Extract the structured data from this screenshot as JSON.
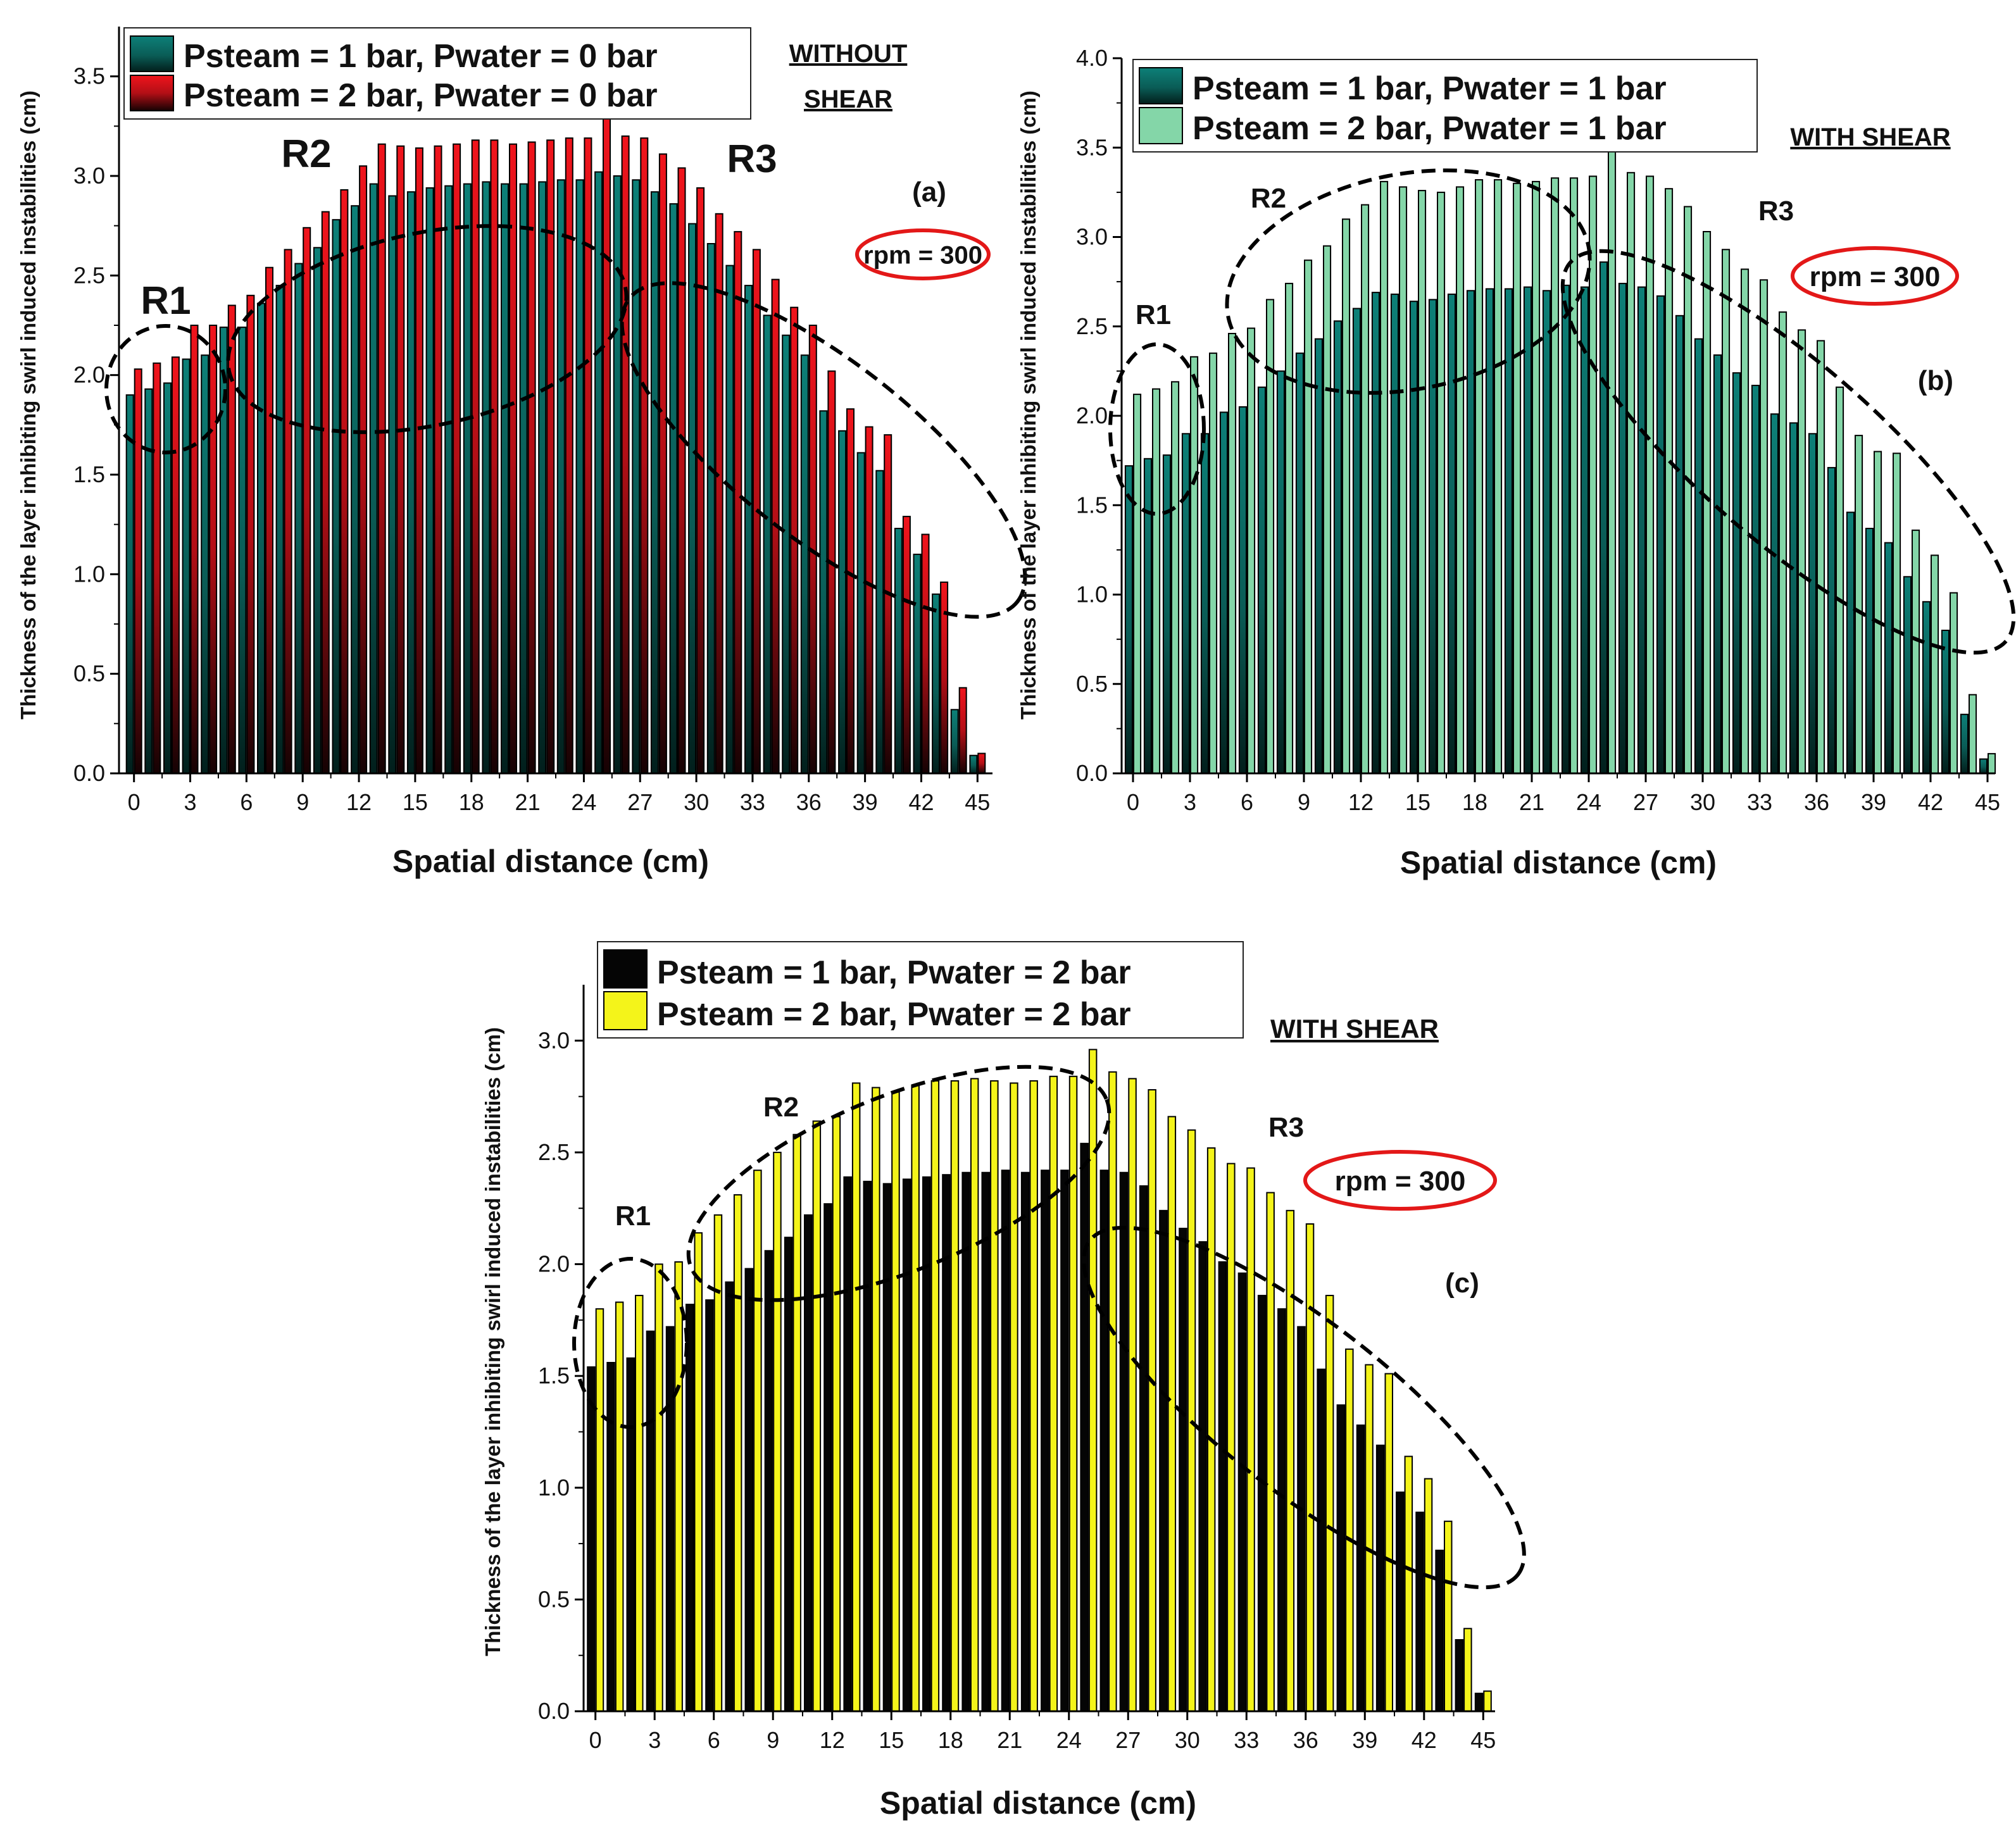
{
  "colors": {
    "teal": "#0d7a72",
    "teal_dark": "#053c37",
    "red": "#e8141e",
    "mint": "#84d6a8",
    "black": "#050505",
    "yellow": "#f4f41a",
    "rpm_ellipse": "#e31818"
  },
  "chart_data": [
    {
      "id": "a",
      "type": "bar",
      "panel_label": "(a)",
      "condition": "WITHOUT SHEAR",
      "condition_lines": [
        "WITHOUT",
        "SHEAR"
      ],
      "rpm_label": "rpm = 300",
      "region_labels": [
        "R1",
        "R2",
        "R3"
      ],
      "xlabel": "Spatial distance (cm)",
      "ylabel": "Thickness of the layer inhibiting swirl induced instabilities (cm)",
      "xlim": [
        -0.8,
        45.8
      ],
      "ylim": [
        0,
        3.75
      ],
      "xticks": [
        0,
        3,
        6,
        9,
        12,
        15,
        18,
        21,
        24,
        27,
        30,
        33,
        36,
        39,
        42,
        45
      ],
      "yticks": [
        "0.0",
        "0.5",
        "1.0",
        "1.5",
        "2.0",
        "2.5",
        "3.0",
        "3.5"
      ],
      "x": [
        0,
        1,
        2,
        3,
        4,
        5,
        6,
        7,
        8,
        9,
        10,
        11,
        12,
        13,
        14,
        15,
        16,
        17,
        18,
        19,
        20,
        21,
        22,
        23,
        24,
        25,
        26,
        27,
        28,
        29,
        30,
        31,
        32,
        33,
        34,
        35,
        36,
        37,
        38,
        39,
        40,
        41,
        42,
        43,
        44,
        45
      ],
      "series": [
        {
          "name": "Psteam = 1 bar, Pwater = 0 bar",
          "color_key": "teal",
          "values": [
            1.9,
            1.93,
            1.96,
            2.08,
            2.1,
            2.24,
            2.24,
            2.36,
            2.45,
            2.56,
            2.64,
            2.78,
            2.85,
            2.96,
            2.9,
            2.92,
            2.94,
            2.95,
            2.96,
            2.97,
            2.96,
            2.96,
            2.97,
            2.98,
            2.98,
            3.02,
            3.0,
            2.98,
            2.92,
            2.86,
            2.76,
            2.66,
            2.55,
            2.45,
            2.3,
            2.2,
            2.1,
            1.82,
            1.72,
            1.61,
            1.52,
            1.23,
            1.1,
            0.9,
            0.32,
            0.09
          ]
        },
        {
          "name": "Psteam = 2 bar, Pwater = 0 bar",
          "color_key": "red",
          "values": [
            2.03,
            2.06,
            2.09,
            2.25,
            2.25,
            2.35,
            2.4,
            2.54,
            2.63,
            2.74,
            2.82,
            2.93,
            3.05,
            3.16,
            3.15,
            3.14,
            3.15,
            3.16,
            3.18,
            3.18,
            3.16,
            3.17,
            3.18,
            3.19,
            3.19,
            3.32,
            3.2,
            3.19,
            3.11,
            3.04,
            2.94,
            2.81,
            2.72,
            2.63,
            2.48,
            2.34,
            2.25,
            2.02,
            1.83,
            1.74,
            1.7,
            1.29,
            1.2,
            0.96,
            0.43,
            0.1
          ]
        }
      ]
    },
    {
      "id": "b",
      "type": "bar",
      "panel_label": "(b)",
      "condition": "WITH SHEAR",
      "condition_lines": [
        "WITH SHEAR"
      ],
      "rpm_label": "rpm = 300",
      "region_labels": [
        "R1",
        "R2",
        "R3"
      ],
      "xlabel": "Spatial distance (cm)",
      "ylabel": "Thickness of the layer inhibiting swirl induced instabilities (cm)",
      "xlim": [
        -0.6,
        45.4
      ],
      "ylim": [
        0,
        4.0
      ],
      "xticks": [
        0,
        3,
        6,
        9,
        12,
        15,
        18,
        21,
        24,
        27,
        30,
        33,
        36,
        39,
        42,
        45
      ],
      "yticks": [
        "0.0",
        "0.5",
        "1.0",
        "1.5",
        "2.0",
        "2.5",
        "3.0",
        "3.5",
        "4.0"
      ],
      "x": [
        0,
        1,
        2,
        3,
        4,
        5,
        6,
        7,
        8,
        9,
        10,
        11,
        12,
        13,
        14,
        15,
        16,
        17,
        18,
        19,
        20,
        21,
        22,
        23,
        24,
        25,
        26,
        27,
        28,
        29,
        30,
        31,
        32,
        33,
        34,
        35,
        36,
        37,
        38,
        39,
        40,
        41,
        42,
        43,
        44,
        45
      ],
      "series": [
        {
          "name": "Psteam = 1 bar, Pwater = 1 bar",
          "color_key": "teal",
          "values": [
            1.72,
            1.76,
            1.78,
            1.9,
            1.9,
            2.02,
            2.05,
            2.16,
            2.25,
            2.35,
            2.43,
            2.53,
            2.6,
            2.69,
            2.68,
            2.64,
            2.65,
            2.68,
            2.7,
            2.71,
            2.71,
            2.72,
            2.7,
            2.73,
            2.72,
            2.86,
            2.74,
            2.72,
            2.67,
            2.56,
            2.43,
            2.34,
            2.24,
            2.17,
            2.01,
            1.96,
            1.9,
            1.71,
            1.46,
            1.37,
            1.29,
            1.1,
            0.96,
            0.8,
            0.33,
            0.08
          ]
        },
        {
          "name": "Psteam = 2 bar, Pwater = 1 bar",
          "color_key": "mint",
          "values": [
            2.12,
            2.15,
            2.19,
            2.33,
            2.35,
            2.46,
            2.49,
            2.65,
            2.74,
            2.87,
            2.95,
            3.1,
            3.18,
            3.31,
            3.28,
            3.26,
            3.25,
            3.28,
            3.32,
            3.32,
            3.3,
            3.31,
            3.33,
            3.33,
            3.34,
            3.49,
            3.36,
            3.34,
            3.27,
            3.17,
            3.03,
            2.93,
            2.82,
            2.76,
            2.58,
            2.48,
            2.42,
            2.16,
            1.89,
            1.8,
            1.79,
            1.36,
            1.22,
            1.01,
            0.44,
            0.11
          ]
        }
      ]
    },
    {
      "id": "c",
      "type": "bar",
      "panel_label": "(c)",
      "condition": "WITH SHEAR",
      "condition_lines": [
        "WITH SHEAR"
      ],
      "rpm_label": "rpm = 300",
      "region_labels": [
        "R1",
        "R2",
        "R3"
      ],
      "xlabel": "Spatial distance (cm)",
      "ylabel": "Thickness of the layer inhibiting swirl induced instabilities (cm)",
      "xlim": [
        -0.6,
        45.6
      ],
      "ylim": [
        0,
        3.25
      ],
      "xticks": [
        0,
        3,
        6,
        9,
        12,
        15,
        18,
        21,
        24,
        27,
        30,
        33,
        36,
        39,
        42,
        45
      ],
      "yticks": [
        "0.0",
        "0.5",
        "1.0",
        "1.5",
        "2.0",
        "2.5",
        "3.0"
      ],
      "x": [
        0,
        1,
        2,
        3,
        4,
        5,
        6,
        7,
        8,
        9,
        10,
        11,
        12,
        13,
        14,
        15,
        16,
        17,
        18,
        19,
        20,
        21,
        22,
        23,
        24,
        25,
        26,
        27,
        28,
        29,
        30,
        31,
        32,
        33,
        34,
        35,
        36,
        37,
        38,
        39,
        40,
        41,
        42,
        43,
        44,
        45
      ],
      "series": [
        {
          "name": "Psteam = 1 bar, Pwater = 2 bar",
          "color_key": "black",
          "values": [
            1.54,
            1.56,
            1.58,
            1.7,
            1.72,
            1.82,
            1.84,
            1.92,
            1.98,
            2.06,
            2.12,
            2.22,
            2.27,
            2.39,
            2.37,
            2.36,
            2.38,
            2.39,
            2.4,
            2.41,
            2.41,
            2.42,
            2.41,
            2.42,
            2.42,
            2.54,
            2.42,
            2.41,
            2.35,
            2.24,
            2.16,
            2.1,
            2.01,
            1.96,
            1.86,
            1.8,
            1.72,
            1.53,
            1.37,
            1.28,
            1.19,
            0.98,
            0.89,
            0.72,
            0.32,
            0.08
          ]
        },
        {
          "name": "Psteam = 2 bar, Pwater = 2 bar",
          "color_key": "yellow",
          "values": [
            1.8,
            1.83,
            1.86,
            2.0,
            2.01,
            2.14,
            2.22,
            2.31,
            2.42,
            2.5,
            2.58,
            2.64,
            2.66,
            2.81,
            2.79,
            2.77,
            2.8,
            2.82,
            2.82,
            2.83,
            2.82,
            2.81,
            2.82,
            2.84,
            2.84,
            2.96,
            2.86,
            2.83,
            2.78,
            2.66,
            2.6,
            2.52,
            2.45,
            2.43,
            2.32,
            2.24,
            2.18,
            1.86,
            1.62,
            1.55,
            1.51,
            1.14,
            1.04,
            0.85,
            0.37,
            0.09
          ]
        }
      ]
    }
  ]
}
